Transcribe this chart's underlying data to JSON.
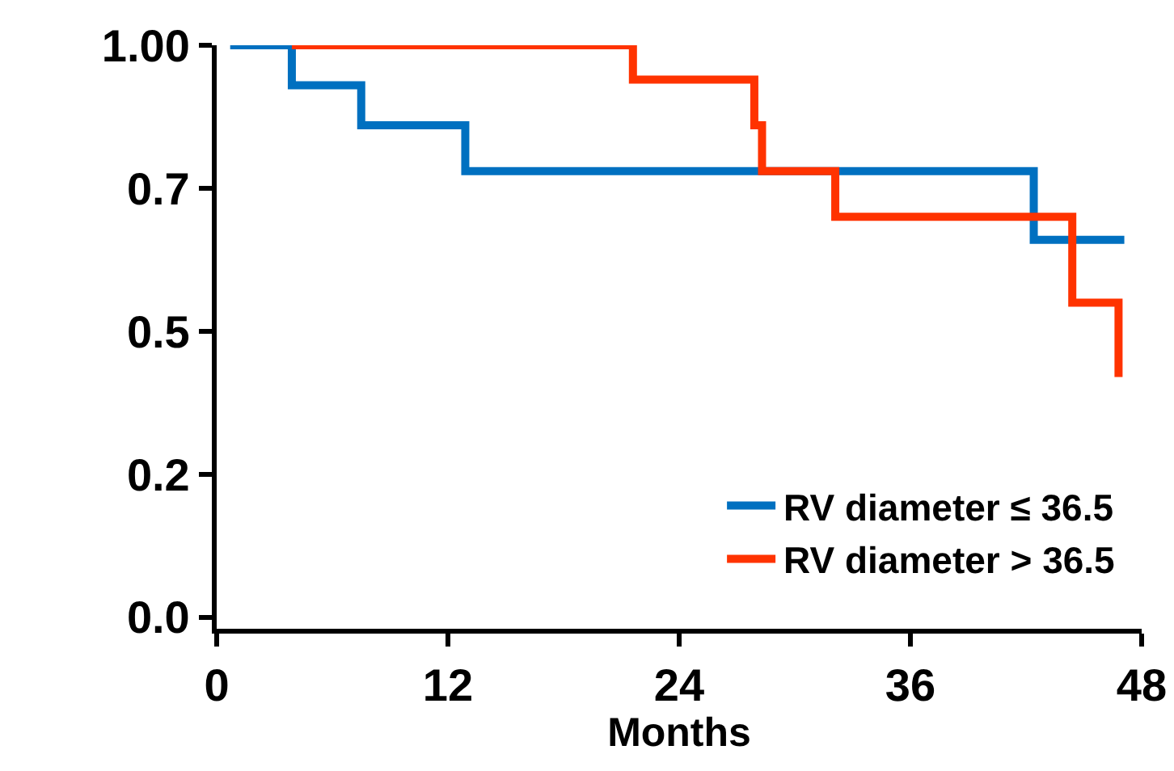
{
  "chart_data": {
    "type": "step",
    "xlabel": "Months",
    "xlim": [
      0,
      48
    ],
    "xticks": [
      0,
      12,
      24,
      36,
      48
    ],
    "ylim": [
      -0.02,
      1.0
    ],
    "yticks": [
      {
        "value": 0,
        "label": "0.0"
      },
      {
        "value": 0.25,
        "label": "0.2"
      },
      {
        "value": 0.5,
        "label": "0.5"
      },
      {
        "value": 0.75,
        "label": "0.7"
      },
      {
        "value": 1.0,
        "label": "1.00"
      }
    ],
    "series": [
      {
        "name": "RV diameter ≤ 36.5",
        "color": "#0070c0",
        "x": [
          0.7,
          3.9,
          7.5,
          12.9,
          42.4,
          47.1
        ],
        "values": [
          1.0,
          0.93,
          0.86,
          0.78,
          0.66,
          0.66
        ]
      },
      {
        "name": "RV diameter > 36.5",
        "color": "#ff3300",
        "x": [
          3.9,
          21.6,
          27.9,
          28.3,
          32.1,
          44.4,
          46.8
        ],
        "values": [
          1.0,
          0.94,
          0.86,
          0.78,
          0.7,
          0.55,
          0.42
        ]
      }
    ],
    "grid": false,
    "legend": "bottom right",
    "marker": "none",
    "line_style": "solid"
  }
}
